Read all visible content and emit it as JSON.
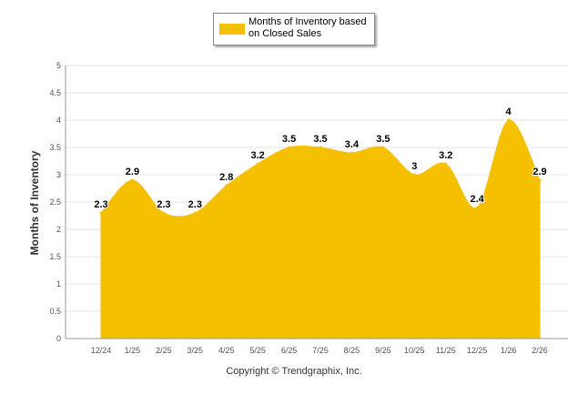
{
  "legend": {
    "label": "Months of Inventory based on Closed Sales"
  },
  "copyright": "Copyright © Trendgraphix, Inc.",
  "colors": {
    "area": "#F5C000",
    "grid": "#e6e6e6",
    "axis": "#999999"
  },
  "chart_data": {
    "type": "area",
    "title": "",
    "xlabel": "",
    "ylabel": "Months of Inventory",
    "ylim": [
      0,
      5
    ],
    "yticks": [
      "0",
      "0.5",
      "1",
      "1.5",
      "2",
      "2.5",
      "3",
      "3.5",
      "4",
      "4.5",
      "5"
    ],
    "grid": true,
    "legend_position": "top-center",
    "categories": [
      "12/24",
      "1/25",
      "2/25",
      "3/25",
      "4/25",
      "5/25",
      "6/25",
      "7/25",
      "8/25",
      "9/25",
      "10/25",
      "11/25",
      "12/25",
      "1/26",
      "2/26"
    ],
    "series": [
      {
        "name": "Months of Inventory based on Closed Sales",
        "values": [
          2.3,
          2.9,
          2.3,
          2.3,
          2.8,
          3.2,
          3.5,
          3.5,
          3.4,
          3.5,
          3,
          3.2,
          2.4,
          4,
          2.9
        ],
        "labels": [
          "2.3",
          "2.9",
          "2.3",
          "2.3",
          "2.8",
          "3.2",
          "3.5",
          "3.5",
          "3.4",
          "3.5",
          "3",
          "3.2",
          "2.4",
          "4",
          "2.9"
        ]
      }
    ]
  }
}
